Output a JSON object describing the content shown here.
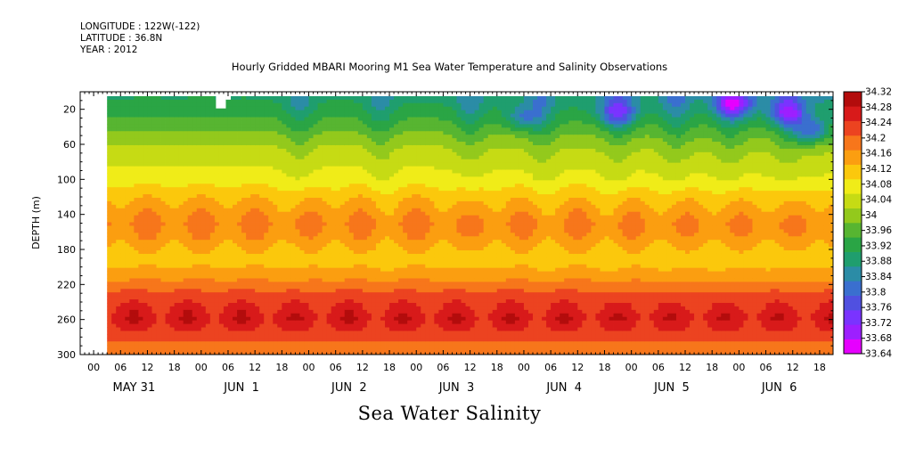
{
  "header": {
    "longitude": "LONGITUDE : 122W(-122)",
    "latitude": "LATITUDE : 36.8N",
    "year": "YEAR : 2012"
  },
  "title": "Hourly Gridded MBARI Mooring M1 Sea Water Temperature and Salinity Observations",
  "footer_label": "Sea Water Salinity",
  "chart_data": {
    "type": "heatmap",
    "title": "Hourly Gridded MBARI Mooring M1 Sea Water Temperature and Salinity Observations",
    "xlabel": "",
    "ylabel": "DEPTH (m)",
    "x_hour_ticks": [
      "00",
      "06",
      "12",
      "18",
      "00",
      "06",
      "12",
      "18",
      "00",
      "06",
      "12",
      "18",
      "00",
      "06",
      "12",
      "18",
      "00",
      "06",
      "12",
      "18",
      "00",
      "06",
      "12",
      "18",
      "00",
      "06",
      "12",
      "18"
    ],
    "x_day_labels": [
      "MAY 31",
      "JUN  1",
      "JUN  2",
      "JUN  3",
      "JUN  4",
      "JUN  5",
      "JUN  6"
    ],
    "xlim_hours": [
      -3,
      165
    ],
    "data_start_hour": 3,
    "y_ticks": [
      20,
      60,
      100,
      140,
      180,
      220,
      260,
      300
    ],
    "ylim": [
      300,
      0
    ],
    "y_inverted": true,
    "colorbar": {
      "levels": [
        "33.64",
        "33.68",
        "33.72",
        "33.76",
        "33.8",
        "33.84",
        "33.88",
        "33.92",
        "33.96",
        "34",
        "34.04",
        "34.08",
        "34.12",
        "34.16",
        "34.2",
        "34.24",
        "34.28",
        "34.32"
      ],
      "colors": [
        "#e600ff",
        "#9d1fff",
        "#7a33ff",
        "#5050e0",
        "#3a6fcf",
        "#2b8ca6",
        "#1f9e6e",
        "#2aa545",
        "#57b531",
        "#93c91c",
        "#c6db14",
        "#f0ec18",
        "#fbc80c",
        "#fb9e10",
        "#f7761b",
        "#ec4320",
        "#d81a1a",
        "#b30c0c"
      ]
    },
    "profile": {
      "depths": [
        10,
        25,
        45,
        65,
        85,
        100,
        115,
        128,
        140,
        150,
        160,
        175,
        190,
        205,
        218,
        230,
        245,
        258,
        270,
        285,
        300
      ],
      "salinity": [
        33.92,
        33.95,
        34.0,
        34.05,
        34.08,
        34.1,
        34.14,
        34.17,
        34.19,
        34.21,
        34.2,
        34.17,
        34.14,
        34.17,
        34.21,
        34.25,
        34.28,
        34.3,
        34.28,
        34.24,
        34.21
      ]
    },
    "fresher_surface_events_hour": [
      46,
      64,
      84,
      100,
      117,
      130,
      142,
      155
    ],
    "low_salinity_patches": [
      {
        "hour": 143,
        "depth": 15,
        "value": 33.74
      },
      {
        "hour": 155,
        "depth": 25,
        "value": 33.78
      },
      {
        "hour": 117,
        "depth": 25,
        "value": 33.8
      },
      {
        "hour": 160,
        "depth": 45,
        "value": 33.84
      },
      {
        "hour": 96,
        "depth": 30,
        "value": 33.86
      }
    ],
    "high_salinity_pulses_hour": [
      9,
      21,
      33,
      45,
      57,
      69,
      81,
      93,
      105,
      117,
      129,
      141,
      153,
      165
    ]
  }
}
